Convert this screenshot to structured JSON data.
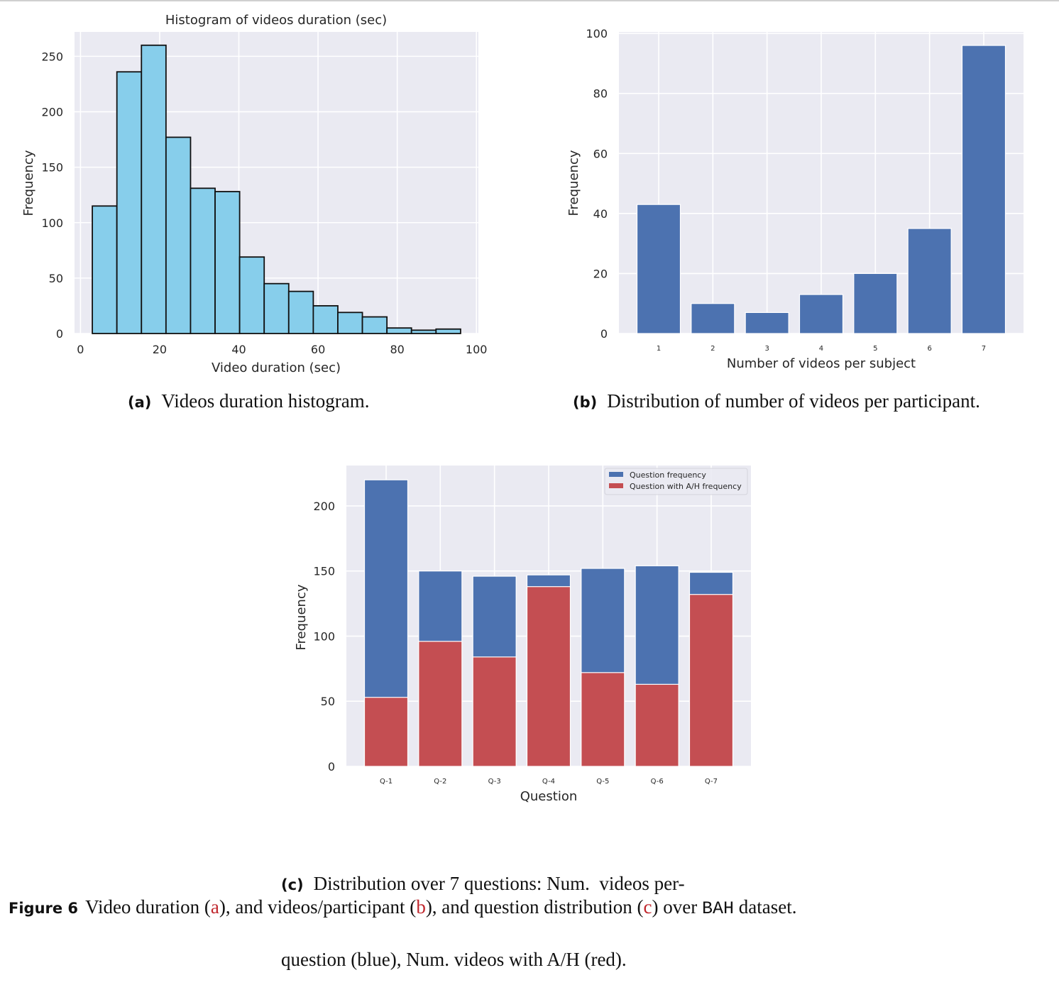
{
  "figure": {
    "label": "Figure 6",
    "caption_parts": {
      "p1": "Video duration (",
      "ref_a": "a",
      "p2": "), and videos/participant (",
      "ref_b": "b",
      "p3": "), and question distribution (",
      "ref_c": "c",
      "p4": ") over ",
      "dataset": "BAH",
      "p5": " dataset."
    }
  },
  "subcaptions": {
    "a": {
      "tag": "(a)",
      "text": "Videos duration histogram."
    },
    "b": {
      "tag": "(b)",
      "text": "Distribution of number of videos per participant."
    },
    "c": {
      "tag": "(c)",
      "line1": "Distribution over 7 questions: Num.  videos per-",
      "line2": "question (blue), Num. videos with A/H (red)."
    }
  },
  "colors": {
    "plot_bg": "#eaeaf2",
    "grid": "#ffffff",
    "hist_fill": "#87ceeb",
    "hist_edge": "#111111",
    "blue": "#4c72b0",
    "red": "#c44e52",
    "ref_red": "#c0272d"
  },
  "chart_data": [
    {
      "id": "a",
      "type": "bar",
      "subtype": "histogram",
      "title": "Histogram of videos duration (sec)",
      "xlabel": "Video duration (sec)",
      "ylabel": "Frequency",
      "xlim": [
        -1.5,
        100.5
      ],
      "ylim": [
        0,
        272
      ],
      "xticks": [
        0,
        20,
        40,
        60,
        80,
        100
      ],
      "yticks": [
        0,
        50,
        100,
        150,
        200,
        250
      ],
      "grid": true,
      "bin_edges": [
        3.0,
        9.2,
        15.4,
        21.6,
        27.8,
        34.0,
        40.2,
        46.4,
        52.6,
        58.8,
        65.0,
        71.2,
        77.4,
        83.6,
        89.8,
        96.0
      ],
      "values": [
        115,
        236,
        260,
        177,
        131,
        128,
        69,
        45,
        38,
        25,
        19,
        15,
        5,
        3,
        4
      ]
    },
    {
      "id": "b",
      "type": "bar",
      "title": "",
      "xlabel": "Number of videos per subject",
      "ylabel": "Frequency",
      "categories": [
        "1",
        "2",
        "3",
        "4",
        "5",
        "6",
        "7"
      ],
      "values": [
        43,
        10,
        7,
        13,
        20,
        35,
        96
      ],
      "ylim": [
        0,
        100.5
      ],
      "yticks": [
        0,
        20,
        40,
        60,
        80,
        100
      ],
      "grid": true
    },
    {
      "id": "c",
      "type": "bar",
      "subtype": "overlaid",
      "title": "",
      "xlabel": "Question",
      "ylabel": "Frequency",
      "categories": [
        "Q-1",
        "Q-2",
        "Q-3",
        "Q-4",
        "Q-5",
        "Q-6",
        "Q-7"
      ],
      "series": [
        {
          "name": "Question frequency",
          "color": "blue",
          "values": [
            220,
            150,
            146,
            147,
            152,
            154,
            149
          ]
        },
        {
          "name": "Question with A/H frequency",
          "color": "red",
          "values": [
            53,
            96,
            84,
            138,
            72,
            63,
            132
          ]
        }
      ],
      "ylim": [
        0,
        231
      ],
      "yticks": [
        0,
        50,
        100,
        150,
        200
      ],
      "legend": "top-right",
      "grid": true
    }
  ]
}
